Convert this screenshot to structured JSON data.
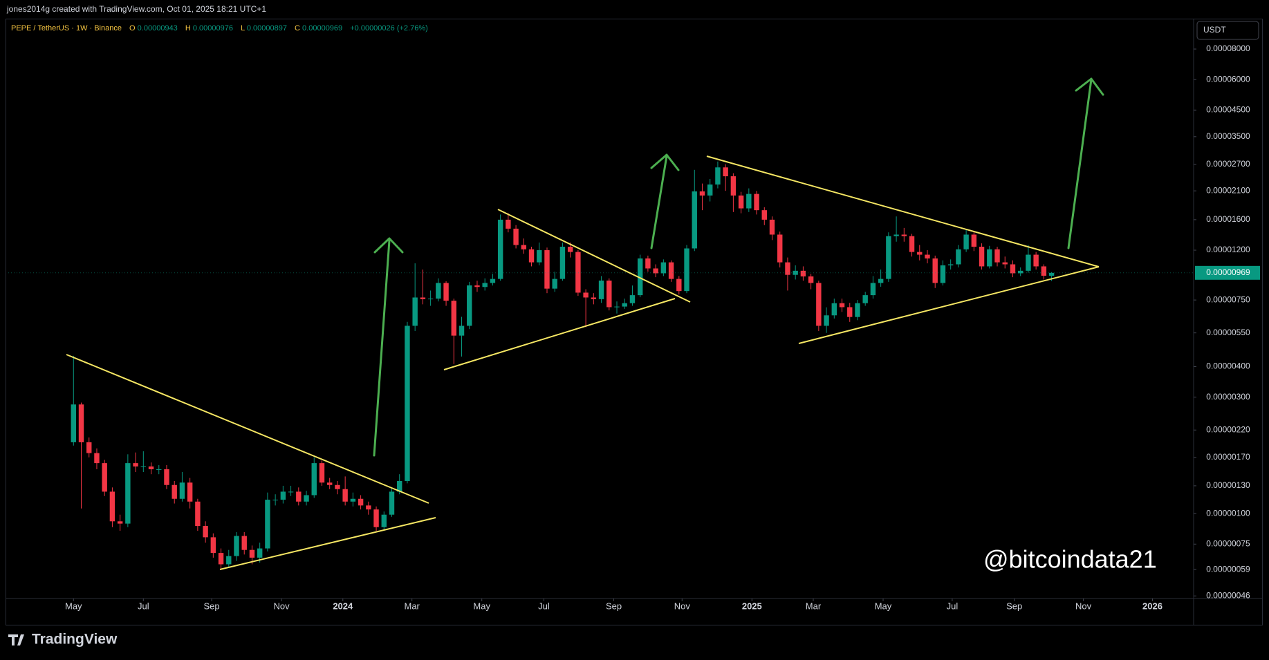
{
  "header": {
    "credit": "jones2014g created with TradingView.com, Oct 01, 2025 18:21 UTC+1"
  },
  "legend": {
    "symbol": "PEPE / TetherUS · 1W · Binance",
    "open_label": "O",
    "open": "0.00000943",
    "high_label": "H",
    "high": "0.00000976",
    "low_label": "L",
    "low": "0.00000897",
    "close_label": "C",
    "close": "0.00000969",
    "change": "+0.00000026 (+2.76%)"
  },
  "currency": "USDT",
  "watermark": "@bitcoindata21",
  "footer": {
    "brand": "TradingView"
  },
  "chart_data": {
    "type": "candlestick",
    "log_scale": true,
    "up_color": "#089981",
    "down_color": "#f23645",
    "last_price_label": "0.00000969",
    "xlim": [
      -8.4,
      144.3
    ],
    "xticks": [
      {
        "value": 0,
        "label": "May"
      },
      {
        "value": 9,
        "label": "Jul"
      },
      {
        "value": 17.8,
        "label": "Sep"
      },
      {
        "value": 26.8,
        "label": "Nov"
      },
      {
        "value": 34.7,
        "label": "2024"
      },
      {
        "value": 43.6,
        "label": "Mar"
      },
      {
        "value": 52.6,
        "label": "May"
      },
      {
        "value": 60.6,
        "label": "Jul"
      },
      {
        "value": 69.6,
        "label": "Sep"
      },
      {
        "value": 78.4,
        "label": "Nov"
      },
      {
        "value": 87.4,
        "label": "2025"
      },
      {
        "value": 95.3,
        "label": "Mar"
      },
      {
        "value": 104.3,
        "label": "May"
      },
      {
        "value": 113.2,
        "label": "Jul"
      },
      {
        "value": 121.2,
        "label": "Sep"
      },
      {
        "value": 130.1,
        "label": "Nov"
      },
      {
        "value": 139,
        "label": "2026"
      }
    ],
    "ylim": [
      4.49e-07,
      0.0001052
    ],
    "yticks": [
      {
        "value": 8e-05,
        "label": "0.00008000"
      },
      {
        "value": 6e-05,
        "label": "0.00006000"
      },
      {
        "value": 4.5e-05,
        "label": "0.00004500"
      },
      {
        "value": 3.5e-05,
        "label": "0.00003500"
      },
      {
        "value": 2.7e-05,
        "label": "0.00002700"
      },
      {
        "value": 2.1e-05,
        "label": "0.00002100"
      },
      {
        "value": 1.6e-05,
        "label": "0.00001600"
      },
      {
        "value": 1.2e-05,
        "label": "0.00001200"
      },
      {
        "value": 7.5e-06,
        "label": "0.00000750"
      },
      {
        "value": 5.5e-06,
        "label": "0.00000550"
      },
      {
        "value": 4e-06,
        "label": "0.00000400"
      },
      {
        "value": 3e-06,
        "label": "0.00000300"
      },
      {
        "value": 2.2e-06,
        "label": "0.00000220"
      },
      {
        "value": 1.7e-06,
        "label": "0.00000170"
      },
      {
        "value": 1.3e-06,
        "label": "0.00000130"
      },
      {
        "value": 1e-06,
        "label": "0.00000100"
      },
      {
        "value": 7.5e-07,
        "label": "0.00000075"
      },
      {
        "value": 5.9e-07,
        "label": "0.00000059"
      },
      {
        "value": 4.6e-07,
        "label": "0.00000046"
      }
    ],
    "open": [
      1.96e-06,
      2.8e-06,
      1.96e-06,
      1.77e-06,
      1.61e-06,
      1.23e-06,
      9.3e-07,
      9.1e-07,
      1.61e-06,
      1.56e-06,
      1.56e-06,
      1.52e-06,
      1.52e-06,
      1.31e-06,
      1.15e-06,
      1.34e-06,
      1.12e-06,
      8.9e-07,
      8e-07,
      6.9e-07,
      6.2e-07,
      6.7e-07,
      8.1e-07,
      7.1e-07,
      6.6e-07,
      7.2e-07,
      1.14e-06,
      1.14e-06,
      1.23e-06,
      1.23e-06,
      1.12e-06,
      1.19e-06,
      1.61e-06,
      1.34e-06,
      1.31e-06,
      1.26e-06,
      1.12e-06,
      1.15e-06,
      1.08e-06,
      1.04e-06,
      8.8e-07,
      9.9e-07,
      1.23e-06,
      1.36e-06,
      5.88e-06,
      7.68e-06,
      7.56e-06,
      7.6e-06,
      8.81e-06,
      7.45e-06,
      5.36e-06,
      5.88e-06,
      8.61e-06,
      8.48e-06,
      8.81e-06,
      9.15e-06,
      1.6e-05,
      1.47e-05,
      1.26e-05,
      1.21e-05,
      1.07e-05,
      1.2e-05,
      8.35e-06,
      9.15e-06,
      1.24e-05,
      1.18e-05,
      8.04e-06,
      7.68e-06,
      7.56e-06,
      9.01e-06,
      7.01e-06,
      7.05e-06,
      7.28e-06,
      7.85e-06,
      1.11e-05,
      1.01e-05,
      9.65e-06,
      1.07e-05,
      9.15e-06,
      8.16e-06,
      1.22e-05,
      2.09e-05,
      2.01e-05,
      2.23e-05,
      2.62e-05,
      2.41e-05,
      2.01e-05,
      1.78e-05,
      2.04e-05,
      1.75e-05,
      1.6e-05,
      1.39e-05,
      1.07e-05,
      9.51e-06,
      9.88e-06,
      9.37e-06,
      8.81e-06,
      5.88e-06,
      6.49e-06,
      7.28e-06,
      7.01e-06,
      6.39e-06,
      7.28e-06,
      7.85e-06,
      8.81e-06,
      9.15e-06,
      1.37e-05,
      1.39e-05,
      1.37e-05,
      1.18e-05,
      1.15e-05,
      1.11e-05,
      8.81e-06,
      1.04e-05,
      1.05e-05,
      1.21e-05,
      1.39e-05,
      1.24e-05,
      1.03e-05,
      1.21e-05,
      1.07e-05,
      1.05e-05,
      9.65e-06,
      9.88e-06,
      1.15e-05,
      1.03e-05,
      9.43e-06
    ],
    "high": [
      4.43e-06,
      2.85e-06,
      2.05e-06,
      1.85e-06,
      1.66e-06,
      1.28e-06,
      9.9e-07,
      1.75e-06,
      1.78e-06,
      1.8e-06,
      1.62e-06,
      1.58e-06,
      1.58e-06,
      1.36e-06,
      1.48e-06,
      1.4e-06,
      1.15e-06,
      9.3e-07,
      8.3e-07,
      7.2e-07,
      7.1e-07,
      8.4e-07,
      8.4e-07,
      7.4e-07,
      7.6e-07,
      1.22e-06,
      1.2e-06,
      1.3e-06,
      1.3e-06,
      1.28e-06,
      1.24e-06,
      1.7e-06,
      1.65e-06,
      1.4e-06,
      1.36e-06,
      1.42e-06,
      1.22e-06,
      1.19e-06,
      1.12e-06,
      1.07e-06,
      1.02e-06,
      1.27e-06,
      1.45e-06,
      6.1e-06,
      1.06e-05,
      1e-05,
      8.2e-06,
      9.2e-06,
      8.95e-06,
      7.6e-06,
      6.4e-06,
      8.9e-06,
      9e-06,
      9.2e-06,
      9.6e-06,
      1.68e-05,
      1.7e-05,
      1.52e-05,
      1.34e-05,
      1.24e-05,
      1.29e-05,
      1.23e-05,
      9.8e-06,
      1.29e-05,
      1.29e-05,
      1.2e-05,
      8.3e-06,
      8e-06,
      9.4e-06,
      9.2e-06,
      7.4e-06,
      7.6e-06,
      8.6e-06,
      1.15e-05,
      1.14e-05,
      1.05e-05,
      1.1e-05,
      1.09e-05,
      9.4e-06,
      1.26e-05,
      2.56e-05,
      2.25e-05,
      2.35e-05,
      2.77e-05,
      2.7e-05,
      2.48e-05,
      2.08e-05,
      2.15e-05,
      2.1e-05,
      1.8e-05,
      1.65e-05,
      1.43e-05,
      1.12e-05,
      1.04e-05,
      1.03e-05,
      9.6e-06,
      9e-06,
      7e-06,
      7.6e-06,
      7.6e-06,
      7.3e-06,
      7.5e-06,
      8.1e-06,
      9.4e-06,
      1e-05,
      1.42e-05,
      1.65e-05,
      1.48e-05,
      1.4e-05,
      1.26e-05,
      1.2e-05,
      1.14e-05,
      1.09e-05,
      1.1e-05,
      1.26e-05,
      1.46e-05,
      1.43e-05,
      1.28e-05,
      1.25e-05,
      1.24e-05,
      1.13e-05,
      1.09e-05,
      1.02e-05,
      1.26e-05,
      1.18e-05,
      1.05e-05,
      9.76e-06
    ],
    "low": [
      1.9e-06,
      1.05e-06,
      1.7e-06,
      1.52e-06,
      1.18e-06,
      8.8e-07,
      8.5e-07,
      8.8e-07,
      1.48e-06,
      1.48e-06,
      1.45e-06,
      1.45e-06,
      1.26e-06,
      1.1e-06,
      1.12e-06,
      1.05e-06,
      8.5e-07,
      7.6e-07,
      6.6e-07,
      5.9e-07,
      6e-07,
      6.4e-07,
      6.8e-07,
      6.2e-07,
      6.3e-07,
      7e-07,
      1.08e-06,
      1.1e-06,
      1.18e-06,
      1.08e-06,
      1.08e-06,
      1.16e-06,
      1.3e-06,
      1.26e-06,
      1.2e-06,
      1.08e-06,
      1.07e-06,
      1.04e-06,
      9.9e-07,
      8.5e-07,
      8.6e-07,
      9.7e-07,
      1.2e-06,
      1.33e-06,
      5.6e-06,
      7.2e-06,
      7.1e-06,
      7.4e-06,
      7.1e-06,
      4.1e-06,
      4.4e-06,
      5.7e-06,
      8.1e-06,
      8.2e-06,
      8.6e-06,
      9e-06,
      1.42e-05,
      1.22e-05,
      1.16e-05,
      1.03e-05,
      1.04e-05,
      8e-06,
      8.1e-06,
      9e-06,
      1.12e-05,
      7.8e-06,
      5.8e-06,
      7.2e-06,
      7.3e-06,
      6.8e-06,
      6.6e-06,
      6.9e-06,
      7.1e-06,
      7.7e-06,
      9.8e-06,
      9.3e-06,
      9.4e-06,
      8.9e-06,
      7.9e-06,
      8e-06,
      1.19e-05,
      1.75e-05,
      1.9e-05,
      2.15e-05,
      2.1e-05,
      1.72e-05,
      1.7e-05,
      1.72e-05,
      1.68e-05,
      1.52e-05,
      1.32e-05,
      1.02e-05,
      8.2e-06,
      9.1e-06,
      9e-06,
      8.3e-06,
      5.6e-06,
      5.5e-06,
      6.3e-06,
      6.7e-06,
      6.1e-06,
      6.2e-06,
      7.1e-06,
      7.6e-06,
      8.5e-06,
      8.9e-06,
      1.3e-05,
      1.3e-05,
      1.13e-05,
      1.09e-05,
      1.06e-05,
      8.4e-06,
      8.6e-06,
      1e-05,
      1.02e-05,
      1.18e-05,
      1.19e-05,
      1e-05,
      1.01e-05,
      1.03e-05,
      1.01e-05,
      9.3e-06,
      9.4e-06,
      9.7e-06,
      1e-05,
      9.1e-06,
      8.97e-06
    ],
    "close": [
      2.8e-06,
      1.96e-06,
      1.77e-06,
      1.61e-06,
      1.23e-06,
      9.3e-07,
      9.1e-07,
      1.61e-06,
      1.56e-06,
      1.56e-06,
      1.52e-06,
      1.52e-06,
      1.31e-06,
      1.15e-06,
      1.34e-06,
      1.12e-06,
      8.9e-07,
      8e-07,
      6.9e-07,
      6.2e-07,
      6.7e-07,
      8.1e-07,
      7.1e-07,
      6.6e-07,
      7.2e-07,
      1.14e-06,
      1.14e-06,
      1.23e-06,
      1.23e-06,
      1.12e-06,
      1.19e-06,
      1.61e-06,
      1.34e-06,
      1.31e-06,
      1.26e-06,
      1.12e-06,
      1.15e-06,
      1.08e-06,
      1.04e-06,
      8.8e-07,
      9.9e-07,
      1.23e-06,
      1.36e-06,
      5.88e-06,
      7.68e-06,
      7.56e-06,
      7.6e-06,
      8.81e-06,
      7.45e-06,
      5.36e-06,
      5.88e-06,
      8.61e-06,
      8.48e-06,
      8.81e-06,
      9.15e-06,
      1.6e-05,
      1.47e-05,
      1.26e-05,
      1.21e-05,
      1.07e-05,
      1.2e-05,
      8.35e-06,
      9.15e-06,
      1.24e-05,
      1.18e-05,
      8.04e-06,
      7.68e-06,
      7.56e-06,
      9.01e-06,
      7.01e-06,
      7.05e-06,
      7.28e-06,
      7.85e-06,
      1.11e-05,
      1.01e-05,
      9.65e-06,
      1.07e-05,
      9.15e-06,
      8.16e-06,
      1.22e-05,
      2.09e-05,
      2.01e-05,
      2.23e-05,
      2.62e-05,
      2.41e-05,
      2.01e-05,
      1.78e-05,
      2.04e-05,
      1.75e-05,
      1.6e-05,
      1.39e-05,
      1.07e-05,
      9.51e-06,
      9.88e-06,
      9.37e-06,
      8.81e-06,
      5.88e-06,
      6.49e-06,
      7.28e-06,
      7.01e-06,
      6.39e-06,
      7.28e-06,
      7.85e-06,
      8.81e-06,
      9.15e-06,
      1.37e-05,
      1.39e-05,
      1.37e-05,
      1.18e-05,
      1.15e-05,
      1.11e-05,
      8.81e-06,
      1.04e-05,
      1.05e-05,
      1.21e-05,
      1.39e-05,
      1.24e-05,
      1.03e-05,
      1.21e-05,
      1.07e-05,
      1.05e-05,
      9.65e-06,
      9.88e-06,
      1.15e-05,
      1.03e-05,
      9.43e-06,
      9.69e-06
    ]
  }
}
